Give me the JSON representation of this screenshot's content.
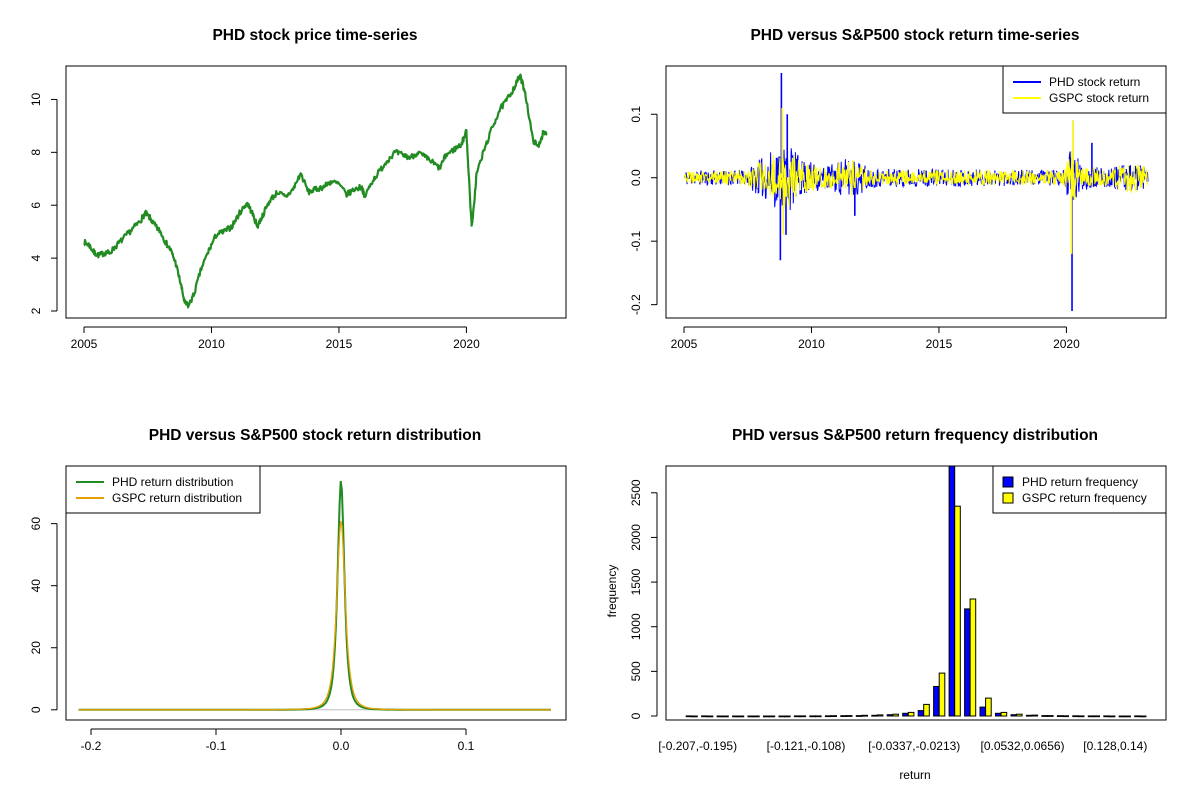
{
  "colors": {
    "green": "#228B22",
    "blue": "#0000FF",
    "yellow": "#FFFF00",
    "orange": "#E69F00",
    "axis": "#000000",
    "zero_line": "#BEBEBE"
  },
  "chart_data": [
    {
      "id": "price",
      "type": "line",
      "title": "PHD stock price time-series",
      "xlabel": "",
      "ylabel": "",
      "xlim": [
        2005,
        2023.2
      ],
      "ylim": [
        2,
        11
      ],
      "xticks": [
        2005,
        2010,
        2015,
        2020
      ],
      "yticks": [
        2,
        4,
        6,
        8,
        10
      ],
      "grid": false,
      "series": [
        {
          "color": "#228B22",
          "x": [
            2005.0,
            2005.2,
            2005.4,
            2005.6,
            2005.8,
            2006.0,
            2006.3,
            2006.6,
            2006.9,
            2007.2,
            2007.4,
            2007.6,
            2007.8,
            2008.0,
            2008.2,
            2008.4,
            2008.6,
            2008.8,
            2008.95,
            2009.1,
            2009.3,
            2009.6,
            2009.9,
            2010.2,
            2010.5,
            2010.8,
            2011.1,
            2011.4,
            2011.6,
            2011.8,
            2012.0,
            2012.3,
            2012.6,
            2012.9,
            2013.2,
            2013.5,
            2013.8,
            2014.1,
            2014.4,
            2014.7,
            2015.0,
            2015.3,
            2015.6,
            2015.9,
            2016.0,
            2016.3,
            2016.6,
            2016.9,
            2017.2,
            2017.5,
            2017.8,
            2018.1,
            2018.4,
            2018.7,
            2018.95,
            2019.2,
            2019.5,
            2019.8,
            2020.0,
            2020.1,
            2020.2,
            2020.25,
            2020.4,
            2020.7,
            2021.0,
            2021.3,
            2021.6,
            2021.9,
            2022.1,
            2022.3,
            2022.6,
            2022.8,
            2023.0,
            2023.15
          ],
          "y": [
            4.6,
            4.5,
            4.2,
            4.1,
            4.2,
            4.2,
            4.5,
            4.8,
            5.1,
            5.4,
            5.7,
            5.5,
            5.2,
            5.0,
            4.6,
            4.3,
            3.8,
            3.0,
            2.3,
            2.2,
            2.6,
            3.6,
            4.3,
            4.9,
            5.0,
            5.2,
            5.7,
            6.1,
            5.7,
            5.2,
            5.6,
            6.2,
            6.5,
            6.3,
            6.6,
            7.2,
            6.5,
            6.6,
            6.7,
            6.9,
            6.8,
            6.4,
            6.6,
            6.7,
            6.3,
            6.9,
            7.3,
            7.7,
            8.0,
            7.9,
            7.8,
            8.0,
            7.8,
            7.6,
            7.4,
            7.9,
            8.1,
            8.3,
            8.8,
            7.0,
            5.3,
            5.5,
            7.2,
            8.1,
            8.9,
            9.6,
            10.0,
            10.5,
            10.9,
            10.3,
            8.5,
            8.2,
            8.7,
            8.7
          ]
        }
      ]
    },
    {
      "id": "returns",
      "type": "line",
      "title": "PHD versus S&P500 stock return time-series",
      "xlabel": "",
      "ylabel": "",
      "xlim": [
        2005,
        2023.2
      ],
      "ylim": [
        -0.21,
        0.165
      ],
      "xticks": [
        2005,
        2010,
        2015,
        2020
      ],
      "yticks": [
        -0.2,
        -0.1,
        0.0,
        0.1
      ],
      "ytick_labels": [
        "-0.2",
        "-0.1",
        "0.0",
        "0.1"
      ],
      "grid": false,
      "legend": "top-right",
      "series": [
        {
          "name": "PHD stock return",
          "color": "#0000FF",
          "volatility": [
            [
              2005,
              0.012
            ],
            [
              2007.4,
              0.012
            ],
            [
              2008.5,
              0.045
            ],
            [
              2009.0,
              0.06
            ],
            [
              2009.6,
              0.03
            ],
            [
              2010.5,
              0.018
            ],
            [
              2011.6,
              0.035
            ],
            [
              2012.3,
              0.015
            ],
            [
              2019.9,
              0.012
            ],
            [
              2020.2,
              0.05
            ],
            [
              2020.6,
              0.02
            ],
            [
              2021.5,
              0.015
            ],
            [
              2022.5,
              0.022
            ],
            [
              2023.2,
              0.018
            ]
          ],
          "spikes": [
            [
              2008.82,
              0.165
            ],
            [
              2008.78,
              -0.13
            ],
            [
              2009.05,
              0.1
            ],
            [
              2009.0,
              -0.09
            ],
            [
              2011.7,
              -0.06
            ],
            [
              2020.22,
              -0.21
            ],
            [
              2020.25,
              0.09
            ],
            [
              2021.0,
              0.055
            ]
          ]
        },
        {
          "name": "GSPC stock return",
          "color": "#FFFF00",
          "volatility": [
            [
              2005,
              0.009
            ],
            [
              2007.4,
              0.012
            ],
            [
              2008.5,
              0.04
            ],
            [
              2009.0,
              0.05
            ],
            [
              2009.6,
              0.025
            ],
            [
              2010.5,
              0.016
            ],
            [
              2011.6,
              0.03
            ],
            [
              2012.3,
              0.012
            ],
            [
              2019.9,
              0.012
            ],
            [
              2020.2,
              0.045
            ],
            [
              2020.6,
              0.02
            ],
            [
              2021.5,
              0.012
            ],
            [
              2022.5,
              0.025
            ],
            [
              2023.2,
              0.018
            ]
          ],
          "spikes": [
            [
              2008.85,
              0.11
            ],
            [
              2008.9,
              -0.09
            ],
            [
              2020.2,
              -0.12
            ],
            [
              2020.25,
              0.09
            ]
          ]
        }
      ]
    },
    {
      "id": "density",
      "type": "line",
      "title": "PHD versus S&P500 stock return distribution",
      "xlabel": "",
      "ylabel": "",
      "xlim": [
        -0.22,
        0.18
      ],
      "ylim": [
        -2,
        76
      ],
      "xticks": [
        -0.2,
        -0.1,
        0.0,
        0.1
      ],
      "xtick_labels": [
        "-0.2",
        "-0.1",
        "0.0",
        "0.1"
      ],
      "yticks": [
        0,
        20,
        40,
        60
      ],
      "grid": false,
      "legend": "top-left",
      "range": [
        -0.21,
        0.168
      ],
      "series": [
        {
          "name": "PHD return distribution",
          "color": "#228B22",
          "peak": 74,
          "sharpness": 230
        },
        {
          "name": "GSPC return distribution",
          "color": "#E69F00",
          "peak": 61,
          "sharpness": 185
        }
      ]
    },
    {
      "id": "histogram",
      "type": "bar",
      "title": "PHD versus S&P500 return frequency distribution",
      "xlabel": "return",
      "ylabel": "frequency",
      "ylim": [
        0,
        2800
      ],
      "yticks": [
        0,
        500,
        1000,
        1500,
        2000,
        2500
      ],
      "grid": false,
      "legend": "top-right",
      "tick_labels": [
        {
          "index": 0,
          "label": "[-0.207,-0.195)"
        },
        {
          "index": 7,
          "label": "[-0.121,-0.108)"
        },
        {
          "index": 14,
          "label": "[-0.0337,-0.0213)"
        },
        {
          "index": 21,
          "label": "[0.0532,0.0656)"
        },
        {
          "index": 27,
          "label": "[0.128,0.14)"
        }
      ],
      "bin_count": 30,
      "series": [
        {
          "name": "PHD return frequency",
          "color": "#0000FF",
          "values": [
            1,
            1,
            0,
            0,
            0,
            0,
            0,
            1,
            1,
            2,
            3,
            5,
            8,
            15,
            30,
            60,
            330,
            2800,
            1200,
            100,
            30,
            15,
            8,
            5,
            3,
            2,
            1,
            1,
            0,
            1
          ]
        },
        {
          "name": "GSPC return frequency",
          "color": "#FFFF00",
          "values": [
            0,
            0,
            0,
            0,
            0,
            0,
            0,
            1,
            1,
            3,
            5,
            8,
            12,
            20,
            40,
            130,
            480,
            2350,
            1310,
            200,
            40,
            20,
            10,
            5,
            2,
            1,
            1,
            0,
            0,
            0
          ]
        }
      ]
    }
  ]
}
